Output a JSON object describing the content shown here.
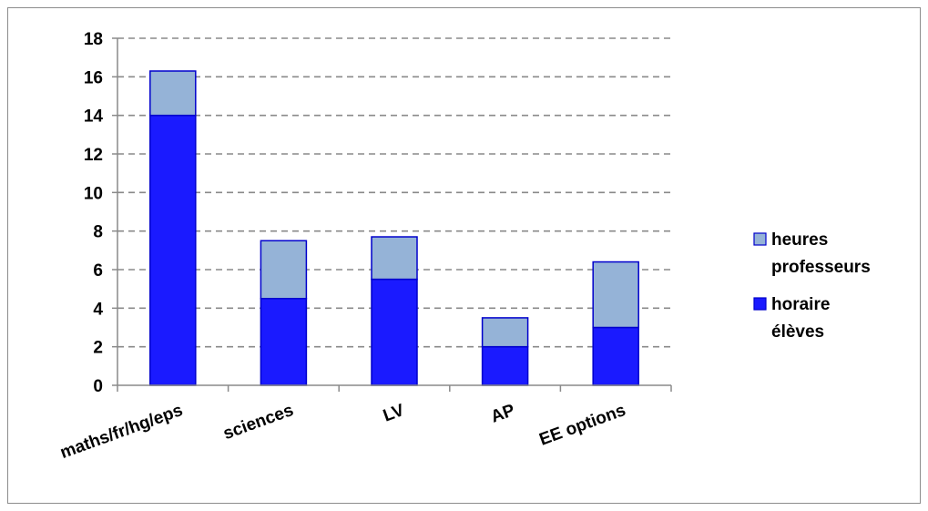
{
  "chart_data": {
    "type": "bar",
    "stacked": true,
    "categories": [
      "maths/fr/hg/eps",
      "sciences",
      "LV",
      "AP",
      "EE options"
    ],
    "series": [
      {
        "name": "horaire élèves",
        "legend_lines": [
          "horaire",
          "élèves"
        ],
        "values": [
          14,
          4.5,
          5.5,
          2,
          3
        ],
        "color": "#1a1aff"
      },
      {
        "name": "heures professeurs",
        "legend_lines": [
          "heures",
          "professeurs"
        ],
        "values": [
          2.3,
          3,
          2.2,
          1.5,
          3.4
        ],
        "color": "#95b3d7"
      }
    ],
    "ylim": [
      0,
      18
    ],
    "yticks": [
      0,
      2,
      4,
      6,
      8,
      10,
      12,
      14,
      16,
      18
    ],
    "ytick_labels": [
      "0",
      "2",
      "4",
      "6",
      "8",
      "10",
      "12",
      "14",
      "16",
      "18"
    ],
    "grid": true,
    "grid_style": "dashed",
    "legend_position": "right",
    "bar_outline_color": "#0000cc",
    "title": "",
    "xlabel": "",
    "ylabel": ""
  }
}
